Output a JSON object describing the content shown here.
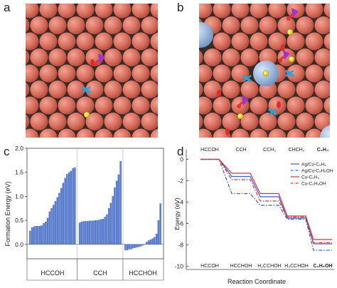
{
  "panels": {
    "a": "a",
    "b": "b",
    "c": "c",
    "d": "d"
  },
  "chart_data": [
    {
      "type": "bar",
      "panel": "c",
      "ylabel": "Formation Energy (eV)",
      "ylim": [
        -0.3,
        2.0
      ],
      "yticks": [
        0.0,
        0.5,
        1.0,
        1.5,
        2.0
      ],
      "groups": [
        {
          "label": "HCCOH",
          "values": [
            0.28,
            0.35,
            0.37,
            0.38,
            0.38,
            0.38,
            0.39,
            0.44,
            0.47,
            0.55,
            0.68,
            0.75,
            0.82,
            0.9,
            0.98,
            1.07,
            1.17,
            1.28,
            1.38,
            1.46,
            1.5,
            1.53,
            1.58,
            1.6
          ]
        },
        {
          "label": "CCH",
          "values": [
            0.45,
            0.47,
            0.48,
            0.48,
            0.48,
            0.49,
            0.49,
            0.49,
            0.5,
            0.5,
            0.51,
            0.52,
            0.53,
            0.57,
            0.62,
            0.75,
            0.86,
            1.0,
            1.18,
            1.32,
            1.45,
            1.73
          ]
        },
        {
          "label": "HCCHOH",
          "values": [
            -0.12,
            -0.12,
            -0.1,
            -0.1,
            -0.08,
            -0.07,
            -0.06,
            -0.05,
            -0.04,
            -0.02,
            0.0,
            0.05,
            0.08,
            0.1,
            0.12,
            0.15,
            0.22,
            0.5,
            0.85
          ]
        }
      ]
    },
    {
      "type": "line",
      "panel": "d",
      "ylabel": "Energy (eV)",
      "xlabel": "Reaction Coordinate",
      "ylim": [
        -10.3,
        0.9
      ],
      "yticks": [
        0,
        -2,
        -4,
        -6,
        -8,
        -10
      ],
      "top_labels": [
        "HCCOH",
        "CCH",
        "CCH₂",
        "CHCH₂",
        "C₂H₄"
      ],
      "bottom_labels": [
        "HCCOH",
        "HCCHOH",
        "H₂CCHOH",
        "H₃CCHOH",
        "C₂H₅OH"
      ],
      "series": [
        {
          "name": "Ag/Cu-C₂H₄",
          "color": "#3a62c4",
          "dash": "solid",
          "values": [
            0.0,
            -1.6,
            -3.5,
            -5.5,
            -7.9
          ]
        },
        {
          "name": "Ag/Cu-C₂H₅OH",
          "color": "#3a62c4",
          "dash": "dashdot",
          "values": [
            0.0,
            -3.2,
            -4.3,
            -5.6,
            -8.5
          ]
        },
        {
          "name": "Cu-C₂H₄",
          "color": "#d9333f",
          "dash": "solid",
          "values": [
            0.0,
            -1.3,
            -3.2,
            -5.3,
            -7.5
          ]
        },
        {
          "name": "Cu-C₂H₅OH",
          "color": "#d9333f",
          "dash": "dashdot",
          "values": [
            0.0,
            -1.9,
            -3.9,
            -5.4,
            -7.8
          ]
        }
      ]
    }
  ]
}
